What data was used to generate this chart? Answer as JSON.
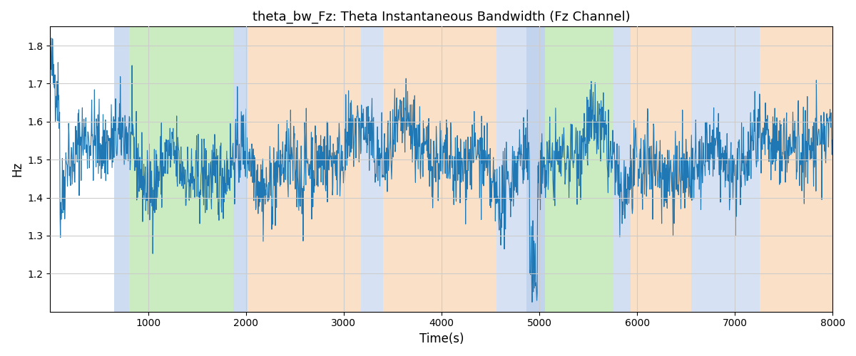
{
  "title": "theta_bw_Fz: Theta Instantaneous Bandwidth (Fz Channel)",
  "xlabel": "Time(s)",
  "ylabel": "Hz",
  "xlim": [
    0,
    8000
  ],
  "ylim": [
    1.1,
    1.85
  ],
  "yticks": [
    1.2,
    1.3,
    1.4,
    1.5,
    1.6,
    1.7,
    1.8
  ],
  "xticks": [
    1000,
    2000,
    3000,
    4000,
    5000,
    6000,
    7000,
    8000
  ],
  "line_color": "#1f77b4",
  "line_width": 0.8,
  "regions": [
    {
      "xstart": 650,
      "xend": 810,
      "color": "#aec6e8",
      "alpha": 0.6
    },
    {
      "xstart": 810,
      "xend": 1870,
      "color": "#98d882",
      "alpha": 0.5
    },
    {
      "xstart": 1870,
      "xend": 2020,
      "color": "#aec6e8",
      "alpha": 0.6
    },
    {
      "xstart": 2020,
      "xend": 3180,
      "color": "#f5c899",
      "alpha": 0.55
    },
    {
      "xstart": 3180,
      "xend": 3400,
      "color": "#aec6e8",
      "alpha": 0.5
    },
    {
      "xstart": 3400,
      "xend": 4560,
      "color": "#f5c899",
      "alpha": 0.55
    },
    {
      "xstart": 4560,
      "xend": 4870,
      "color": "#aec6e8",
      "alpha": 0.5
    },
    {
      "xstart": 4870,
      "xend": 5060,
      "color": "#aec6e8",
      "alpha": 0.75
    },
    {
      "xstart": 5060,
      "xend": 5750,
      "color": "#98d882",
      "alpha": 0.5
    },
    {
      "xstart": 5750,
      "xend": 5930,
      "color": "#aec6e8",
      "alpha": 0.55
    },
    {
      "xstart": 5930,
      "xend": 6550,
      "color": "#f5c899",
      "alpha": 0.55
    },
    {
      "xstart": 6550,
      "xend": 7250,
      "color": "#aec6e8",
      "alpha": 0.5
    },
    {
      "xstart": 7250,
      "xend": 8000,
      "color": "#f5c899",
      "alpha": 0.55
    }
  ],
  "seed": 42,
  "n_points": 2000
}
